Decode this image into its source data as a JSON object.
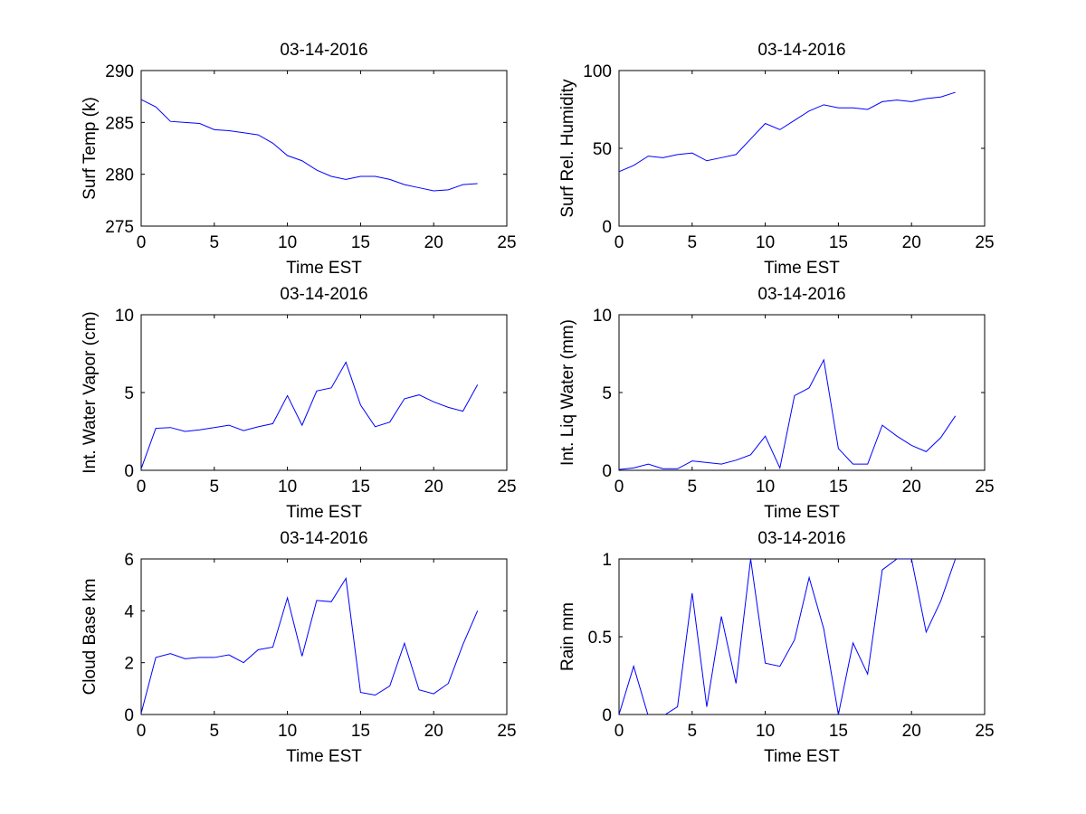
{
  "chart_data": [
    {
      "type": "line",
      "title": "03-14-2016",
      "xlabel": "Time EST",
      "ylabel": "Surf Temp (k)",
      "xlim": [
        0,
        25
      ],
      "ylim": [
        275,
        290
      ],
      "xticks": [
        0,
        5,
        10,
        15,
        20,
        25
      ],
      "yticks": [
        275,
        280,
        285,
        290
      ],
      "line_color": "#0000ff",
      "x": [
        0,
        1,
        2,
        3,
        4,
        5,
        6,
        7,
        8,
        9,
        10,
        11,
        12,
        13,
        14,
        15,
        16,
        17,
        18,
        19,
        20,
        21,
        22,
        23
      ],
      "values": [
        287.2,
        286.5,
        285.1,
        285.0,
        284.9,
        284.3,
        284.2,
        284.0,
        283.8,
        283.0,
        281.8,
        281.3,
        280.4,
        279.8,
        279.5,
        279.8,
        279.8,
        279.5,
        279.0,
        278.7,
        278.4,
        278.5,
        279.0,
        279.1
      ]
    },
    {
      "type": "line",
      "title": "03-14-2016",
      "xlabel": "Time EST",
      "ylabel": "Surf Rel. Humidity",
      "xlim": [
        0,
        25
      ],
      "ylim": [
        0,
        100
      ],
      "xticks": [
        0,
        5,
        10,
        15,
        20,
        25
      ],
      "yticks": [
        0,
        50,
        100
      ],
      "line_color": "#0000ff",
      "x": [
        0,
        1,
        2,
        3,
        4,
        5,
        6,
        7,
        8,
        9,
        10,
        11,
        12,
        13,
        14,
        15,
        16,
        17,
        18,
        19,
        20,
        21,
        22,
        23
      ],
      "values": [
        35,
        39,
        45,
        44,
        46,
        47,
        42,
        44,
        46,
        56,
        66,
        62,
        68,
        74,
        78,
        76,
        76,
        75,
        80,
        81,
        80,
        82,
        83,
        86
      ]
    },
    {
      "type": "line",
      "title": "03-14-2016",
      "xlabel": "Time EST",
      "ylabel": "Int. Water Vapor (cm)",
      "xlim": [
        0,
        25
      ],
      "ylim": [
        0,
        10
      ],
      "xticks": [
        0,
        5,
        10,
        15,
        20,
        25
      ],
      "yticks": [
        0,
        5,
        10
      ],
      "line_color": "#0000ff",
      "x": [
        0,
        1,
        2,
        3,
        4,
        5,
        6,
        7,
        8,
        9,
        10,
        11,
        12,
        13,
        14,
        15,
        16,
        17,
        18,
        19,
        20,
        21,
        22,
        23
      ],
      "values": [
        0.1,
        2.7,
        2.75,
        2.5,
        2.6,
        2.75,
        2.9,
        2.55,
        2.8,
        3.0,
        4.8,
        2.9,
        5.1,
        5.3,
        6.95,
        4.2,
        2.8,
        3.1,
        4.6,
        4.85,
        4.4,
        4.05,
        3.8,
        5.5
      ]
    },
    {
      "type": "line",
      "title": "03-14-2016",
      "xlabel": "Time EST",
      "ylabel": "Int. Liq Water (mm)",
      "xlim": [
        0,
        25
      ],
      "ylim": [
        0,
        10
      ],
      "xticks": [
        0,
        5,
        10,
        15,
        20,
        25
      ],
      "yticks": [
        0,
        5,
        10
      ],
      "line_color": "#0000ff",
      "x": [
        0,
        1,
        2,
        3,
        4,
        5,
        6,
        7,
        8,
        9,
        10,
        11,
        12,
        13,
        14,
        15,
        16,
        17,
        18,
        19,
        20,
        21,
        22,
        23
      ],
      "values": [
        0.05,
        0.15,
        0.4,
        0.1,
        0.1,
        0.6,
        0.5,
        0.4,
        0.65,
        1.0,
        2.2,
        0.15,
        4.8,
        5.3,
        7.1,
        1.4,
        0.4,
        0.4,
        2.9,
        2.2,
        1.6,
        1.2,
        2.1,
        3.5
      ]
    },
    {
      "type": "line",
      "title": "03-14-2016",
      "xlabel": "Time EST",
      "ylabel": "Cloud Base km",
      "xlim": [
        0,
        25
      ],
      "ylim": [
        0,
        6
      ],
      "xticks": [
        0,
        5,
        10,
        15,
        20,
        25
      ],
      "yticks": [
        0,
        2,
        4,
        6
      ],
      "line_color": "#0000ff",
      "x": [
        0,
        1,
        2,
        3,
        4,
        5,
        6,
        7,
        8,
        9,
        10,
        11,
        12,
        13,
        14,
        15,
        16,
        17,
        18,
        19,
        20,
        21,
        22,
        23
      ],
      "values": [
        0.05,
        2.2,
        2.35,
        2.15,
        2.2,
        2.2,
        2.3,
        2.0,
        2.5,
        2.6,
        4.5,
        2.25,
        4.4,
        4.35,
        5.25,
        0.85,
        0.75,
        1.1,
        2.75,
        0.95,
        0.8,
        1.2,
        2.7,
        4.0
      ]
    },
    {
      "type": "line",
      "title": "03-14-2016",
      "xlabel": "Time EST",
      "ylabel": "Rain mm",
      "xlim": [
        0,
        25
      ],
      "ylim": [
        0,
        1
      ],
      "xticks": [
        0,
        5,
        10,
        15,
        20,
        25
      ],
      "yticks": [
        0,
        0.5,
        1
      ],
      "line_color": "#0000ff",
      "x": [
        0,
        1,
        2,
        3,
        4,
        5,
        6,
        7,
        8,
        9,
        10,
        11,
        12,
        13,
        14,
        15,
        16,
        17,
        18,
        19,
        20,
        21,
        22,
        23
      ],
      "values": [
        0.0,
        0.31,
        -0.01,
        -0.01,
        0.05,
        0.78,
        0.05,
        0.63,
        0.2,
        1.0,
        0.33,
        0.31,
        0.48,
        0.88,
        0.55,
        0.0,
        0.46,
        0.26,
        0.93,
        1.0,
        1.0,
        0.53,
        0.73,
        1.0
      ]
    }
  ]
}
